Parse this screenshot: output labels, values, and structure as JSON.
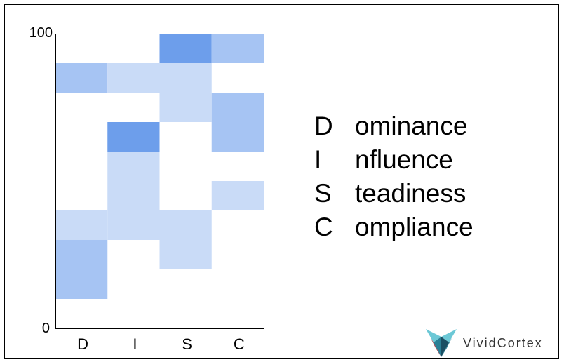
{
  "chart_data": {
    "type": "heatmap",
    "categories": [
      "D",
      "I",
      "S",
      "C"
    ],
    "y_ticks": [
      "100",
      "0"
    ],
    "ylim": [
      0,
      100
    ],
    "bin_size": 10,
    "levels": {
      "0": "#ffffff",
      "1": "#c9dbf7",
      "2": "#a6c4f3",
      "3": "#6d9eeb"
    },
    "cells": [
      {
        "category": "D",
        "y_low": 80,
        "y_high": 90,
        "level": 2
      },
      {
        "category": "D",
        "y_low": 30,
        "y_high": 40,
        "level": 1
      },
      {
        "category": "D",
        "y_low": 10,
        "y_high": 30,
        "level": 2
      },
      {
        "category": "I",
        "y_low": 80,
        "y_high": 90,
        "level": 1
      },
      {
        "category": "I",
        "y_low": 60,
        "y_high": 70,
        "level": 3
      },
      {
        "category": "I",
        "y_low": 30,
        "y_high": 60,
        "level": 1
      },
      {
        "category": "S",
        "y_low": 90,
        "y_high": 100,
        "level": 3
      },
      {
        "category": "S",
        "y_low": 70,
        "y_high": 90,
        "level": 1
      },
      {
        "category": "S",
        "y_low": 20,
        "y_high": 40,
        "level": 1
      },
      {
        "category": "C",
        "y_low": 90,
        "y_high": 100,
        "level": 2
      },
      {
        "category": "C",
        "y_low": 60,
        "y_high": 80,
        "level": 2
      },
      {
        "category": "C",
        "y_low": 40,
        "y_high": 50,
        "level": 1
      }
    ]
  },
  "legend": [
    {
      "letter": "D",
      "rest": "ominance"
    },
    {
      "letter": "I",
      "rest": "nfluence"
    },
    {
      "letter": "S",
      "rest": "teadiness"
    },
    {
      "letter": "C",
      "rest": "ompliance"
    }
  ],
  "logo": {
    "text": "VividCortex",
    "colors": [
      "#6cc8d6",
      "#2a7f95",
      "#1a4f63",
      "#9b3a4a"
    ]
  }
}
